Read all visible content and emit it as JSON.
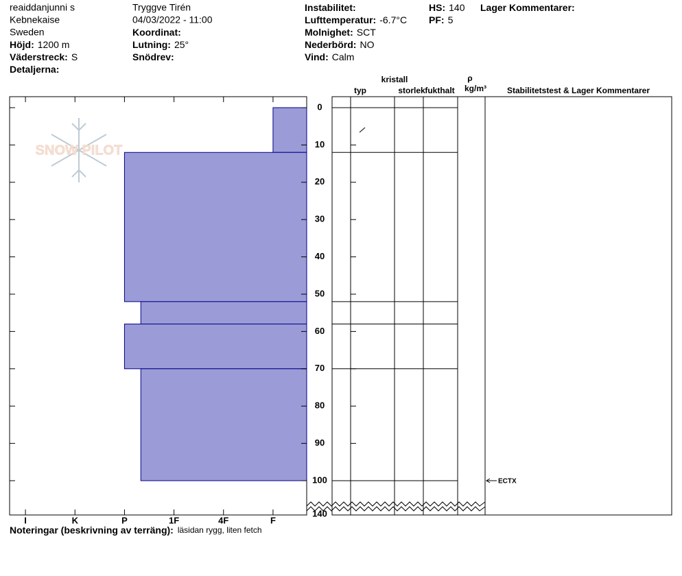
{
  "header": {
    "columns": [
      [
        "reaiddanjunni s",
        "Kebnekaise",
        "Sweden",
        {
          "label": "Höjd:",
          "value": "1200 m"
        },
        {
          "label": "Väderstreck:",
          "value": "S"
        },
        {
          "label": "Detaljerna:"
        }
      ],
      [
        "Tryggve  Tirén",
        "04/03/2022 - 11:00",
        {
          "label": "Koordinat:"
        },
        {
          "label": "Lutning:",
          "value": "25°"
        },
        {
          "label": "Snödrev:"
        }
      ],
      [
        {
          "label": "Instabilitet:"
        },
        {
          "label": "Lufttemperatur:",
          "value": "-6.7°C"
        },
        {
          "label": "Molnighet:",
          "value": "SCT"
        },
        {
          "label": "Nederbörd:",
          "value": "NO"
        },
        {
          "label": "Vind:",
          "value": "Calm"
        }
      ],
      [
        {
          "label": "HS:",
          "value": 140
        },
        {
          "label": "PF:",
          "value": 5
        }
      ],
      [
        {
          "label": "Lager Kommentarer:"
        }
      ]
    ]
  },
  "hardness_axis": {
    "lim": [
      6.32,
      0.32
    ],
    "ticks": [
      {
        "value": 6,
        "label": "I"
      },
      {
        "value": 5,
        "label": "K"
      },
      {
        "value": 4,
        "label": "P"
      },
      {
        "value": 3,
        "label": "1F"
      },
      {
        "value": 2,
        "label": "4F"
      },
      {
        "value": 1,
        "label": "F"
      }
    ]
  },
  "depth_axis": {
    "lim": [
      -2.94,
      100
    ],
    "ticks": [
      0,
      10,
      20,
      30,
      40,
      50,
      60,
      70,
      80,
      90,
      100
    ],
    "bottom_tick": 140
  },
  "layers": [
    {
      "top": 0,
      "bottom": 12,
      "hardness": 1
    },
    {
      "top": 12,
      "bottom": 52,
      "hardness": 4
    },
    {
      "top": 52,
      "bottom": 58,
      "hardness": 3.67
    },
    {
      "top": 58,
      "bottom": 70,
      "hardness": 4
    },
    {
      "top": 70,
      "bottom": 100,
      "hardness": 3.67
    }
  ],
  "layer_color": "#9b9bd7",
  "table_headers": [
    "typ",
    "kristall",
    "storlek",
    "fukthalt",
    "ρ",
    "kg/m³",
    "Stabilitetstest & Lager Kommentarer"
  ],
  "tests": [
    {
      "depth": 100,
      "label": "ECTX"
    }
  ],
  "notes": {
    "label": "Noteringar (beskrivning av terräng):",
    "value": "läsidan rygg, liten fetch"
  },
  "logo": "SNOW PILOT"
}
